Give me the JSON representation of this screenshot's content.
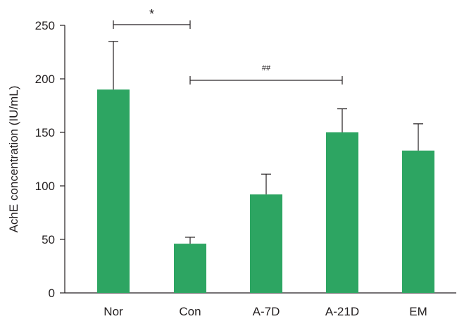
{
  "chart_data": {
    "type": "bar",
    "title": "",
    "xlabel": "",
    "ylabel": "AchE concentration (IU/mL)",
    "categories": [
      "Nor",
      "Con",
      "A-7D",
      "A-21D",
      "EM"
    ],
    "values": [
      190,
      46,
      92,
      150,
      133
    ],
    "errors": [
      45,
      6,
      19,
      22,
      25
    ],
    "ylim": [
      0,
      250
    ],
    "yticks": [
      0,
      50,
      100,
      150,
      200,
      250
    ],
    "grid": false,
    "bar_color": "#2da562",
    "significance": [
      {
        "from": "Nor",
        "to": "Con",
        "label": "*",
        "y": 250
      },
      {
        "from": "Con",
        "to": "A-21D",
        "label": "##",
        "y": 198
      }
    ]
  }
}
